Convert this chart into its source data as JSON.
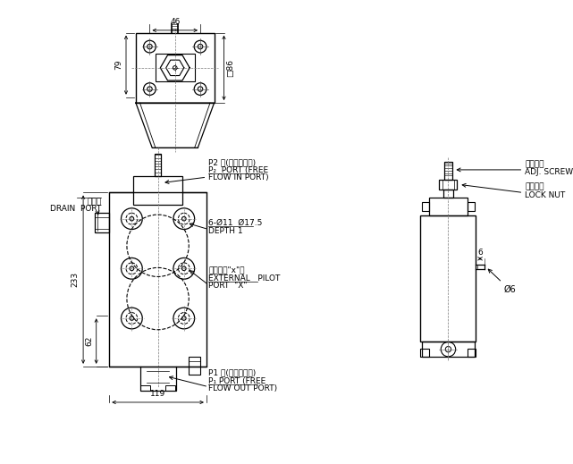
{
  "bg_color": "#ffffff",
  "line_color": "#000000",
  "fs": 6.5,
  "labels": {
    "p2_zh": "P2 口(自由流入口)",
    "p2_en1": "P₂  PORT (FREE",
    "p2_en2": "FLOW IN PORT)",
    "drain_zh": "溩流口",
    "drain_en": "DRAIN  PORT",
    "hole_spec": "6-Ø11  Ø17.5",
    "depth": "DEPTH 1",
    "ext_zh": "外部引導\"x\"口",
    "ext_en1": "EXTERNAL   PILOT",
    "ext_en2": "PORT  \"X\"",
    "p1_zh": "P1 口(自由流出口)",
    "p1_en1": "P₁ PORT (FREE",
    "p1_en2": "FLOW OUT PORT)",
    "adj_zh": "調節螺絲",
    "adj_en": "ADJ. SCREW",
    "lock_zh": "固定螺帽",
    "lock_en": "LOCK NUT",
    "dim_46": "46",
    "dim_79": "79",
    "dim_86": "□86",
    "dim_233": "233",
    "dim_62": "62",
    "dim_119": "119",
    "dim_6": "6",
    "dim_phi6": "Ø6"
  }
}
